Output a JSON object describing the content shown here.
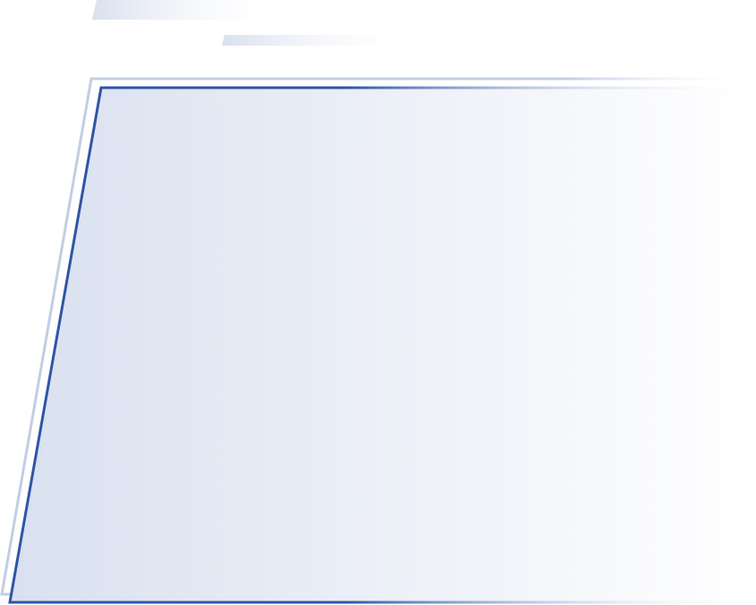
{
  "colors": {
    "accent_blue": "#2f55a6",
    "light_outline": "#c3cde4",
    "fill_start": "#d9e0ef",
    "fill_end": "#ffffff"
  }
}
